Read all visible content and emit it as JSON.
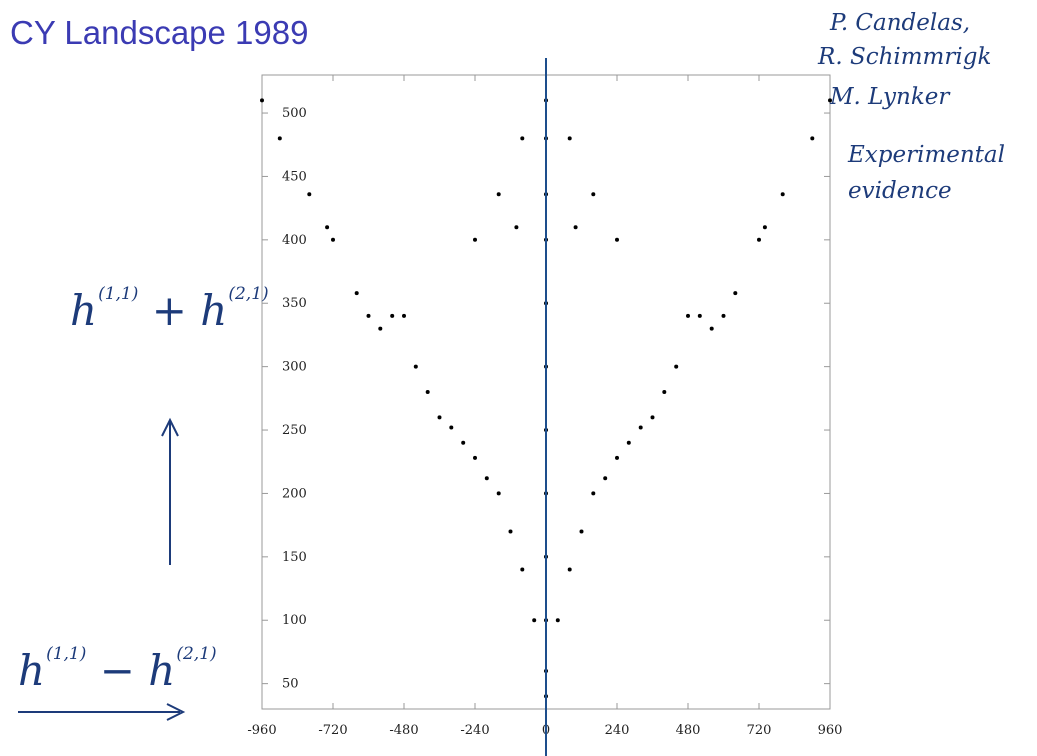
{
  "slide": {
    "title": "CY Landscape 1989"
  },
  "annotations": {
    "credits": [
      "P. Candelas,",
      "R. Schimmrigk",
      "M. Lynker"
    ],
    "note": [
      "Experimental",
      "evidence"
    ],
    "y_formula": {
      "base1": "h",
      "sup1": "(1,1)",
      "op": "+",
      "base2": "h",
      "sup2": "(2,1)"
    },
    "x_formula": {
      "base1": "h",
      "sup1": "(1,1)",
      "op": "−",
      "base2": "h",
      "sup2": "(2,1)"
    }
  },
  "colors": {
    "title": "#3b3bb3",
    "ink": "#1d3b7a",
    "points": "#000000",
    "frame": "#999999"
  },
  "chart_data": {
    "type": "scatter",
    "title": "",
    "xlabel": "h^(1,1) − h^(2,1)",
    "ylabel": "h^(1,1) + h^(2,1)",
    "xlim": [
      -960,
      960
    ],
    "ylim": [
      30,
      530
    ],
    "x_ticks": [
      -960,
      -720,
      -480,
      -240,
      0,
      240,
      480,
      720,
      960
    ],
    "x_tick_labels": [
      "-960",
      "-720",
      "-480",
      "-240",
      "0",
      "240",
      "480",
      "720",
      "960"
    ],
    "y_ticks": [
      50,
      100,
      150,
      200,
      250,
      300,
      350,
      400,
      450,
      500
    ],
    "y_tick_labels": [
      "50",
      "100",
      "150",
      "200",
      "250",
      "300",
      "350",
      "400",
      "450",
      "500"
    ],
    "grid": false,
    "highlighted_vertical_line_x": 0,
    "series": [
      {
        "points": [
          [
            -960,
            510
          ],
          [
            -900,
            480
          ],
          [
            -800,
            436
          ],
          [
            -740,
            410
          ],
          [
            -720,
            400
          ],
          [
            -640,
            358
          ],
          [
            -600,
            340
          ],
          [
            -560,
            330
          ],
          [
            -520,
            340
          ],
          [
            -480,
            340
          ],
          [
            -440,
            300
          ],
          [
            -400,
            280
          ],
          [
            -360,
            260
          ],
          [
            -320,
            252
          ],
          [
            -280,
            240
          ],
          [
            -240,
            228
          ],
          [
            -200,
            212
          ],
          [
            -160,
            200
          ],
          [
            -120,
            170
          ],
          [
            -80,
            140
          ],
          [
            -40,
            100
          ],
          [
            0,
            60
          ],
          [
            40,
            100
          ],
          [
            80,
            140
          ],
          [
            120,
            170
          ],
          [
            160,
            200
          ],
          [
            200,
            212
          ],
          [
            240,
            228
          ],
          [
            280,
            240
          ],
          [
            320,
            252
          ],
          [
            360,
            260
          ],
          [
            400,
            280
          ],
          [
            440,
            300
          ],
          [
            480,
            340
          ],
          [
            520,
            340
          ],
          [
            560,
            330
          ],
          [
            600,
            340
          ],
          [
            640,
            358
          ],
          [
            720,
            400
          ],
          [
            740,
            410
          ],
          [
            800,
            436
          ],
          [
            900,
            480
          ],
          [
            960,
            510
          ],
          [
            -80,
            480
          ],
          [
            80,
            480
          ],
          [
            -160,
            436
          ],
          [
            160,
            436
          ],
          [
            -240,
            400
          ],
          [
            240,
            400
          ],
          [
            -100,
            410
          ],
          [
            100,
            410
          ],
          [
            0,
            510
          ],
          [
            0,
            480
          ],
          [
            0,
            436
          ],
          [
            0,
            400
          ],
          [
            0,
            350
          ],
          [
            0,
            300
          ],
          [
            0,
            250
          ],
          [
            0,
            200
          ],
          [
            0,
            150
          ],
          [
            0,
            100
          ],
          [
            0,
            40
          ]
        ]
      }
    ]
  }
}
